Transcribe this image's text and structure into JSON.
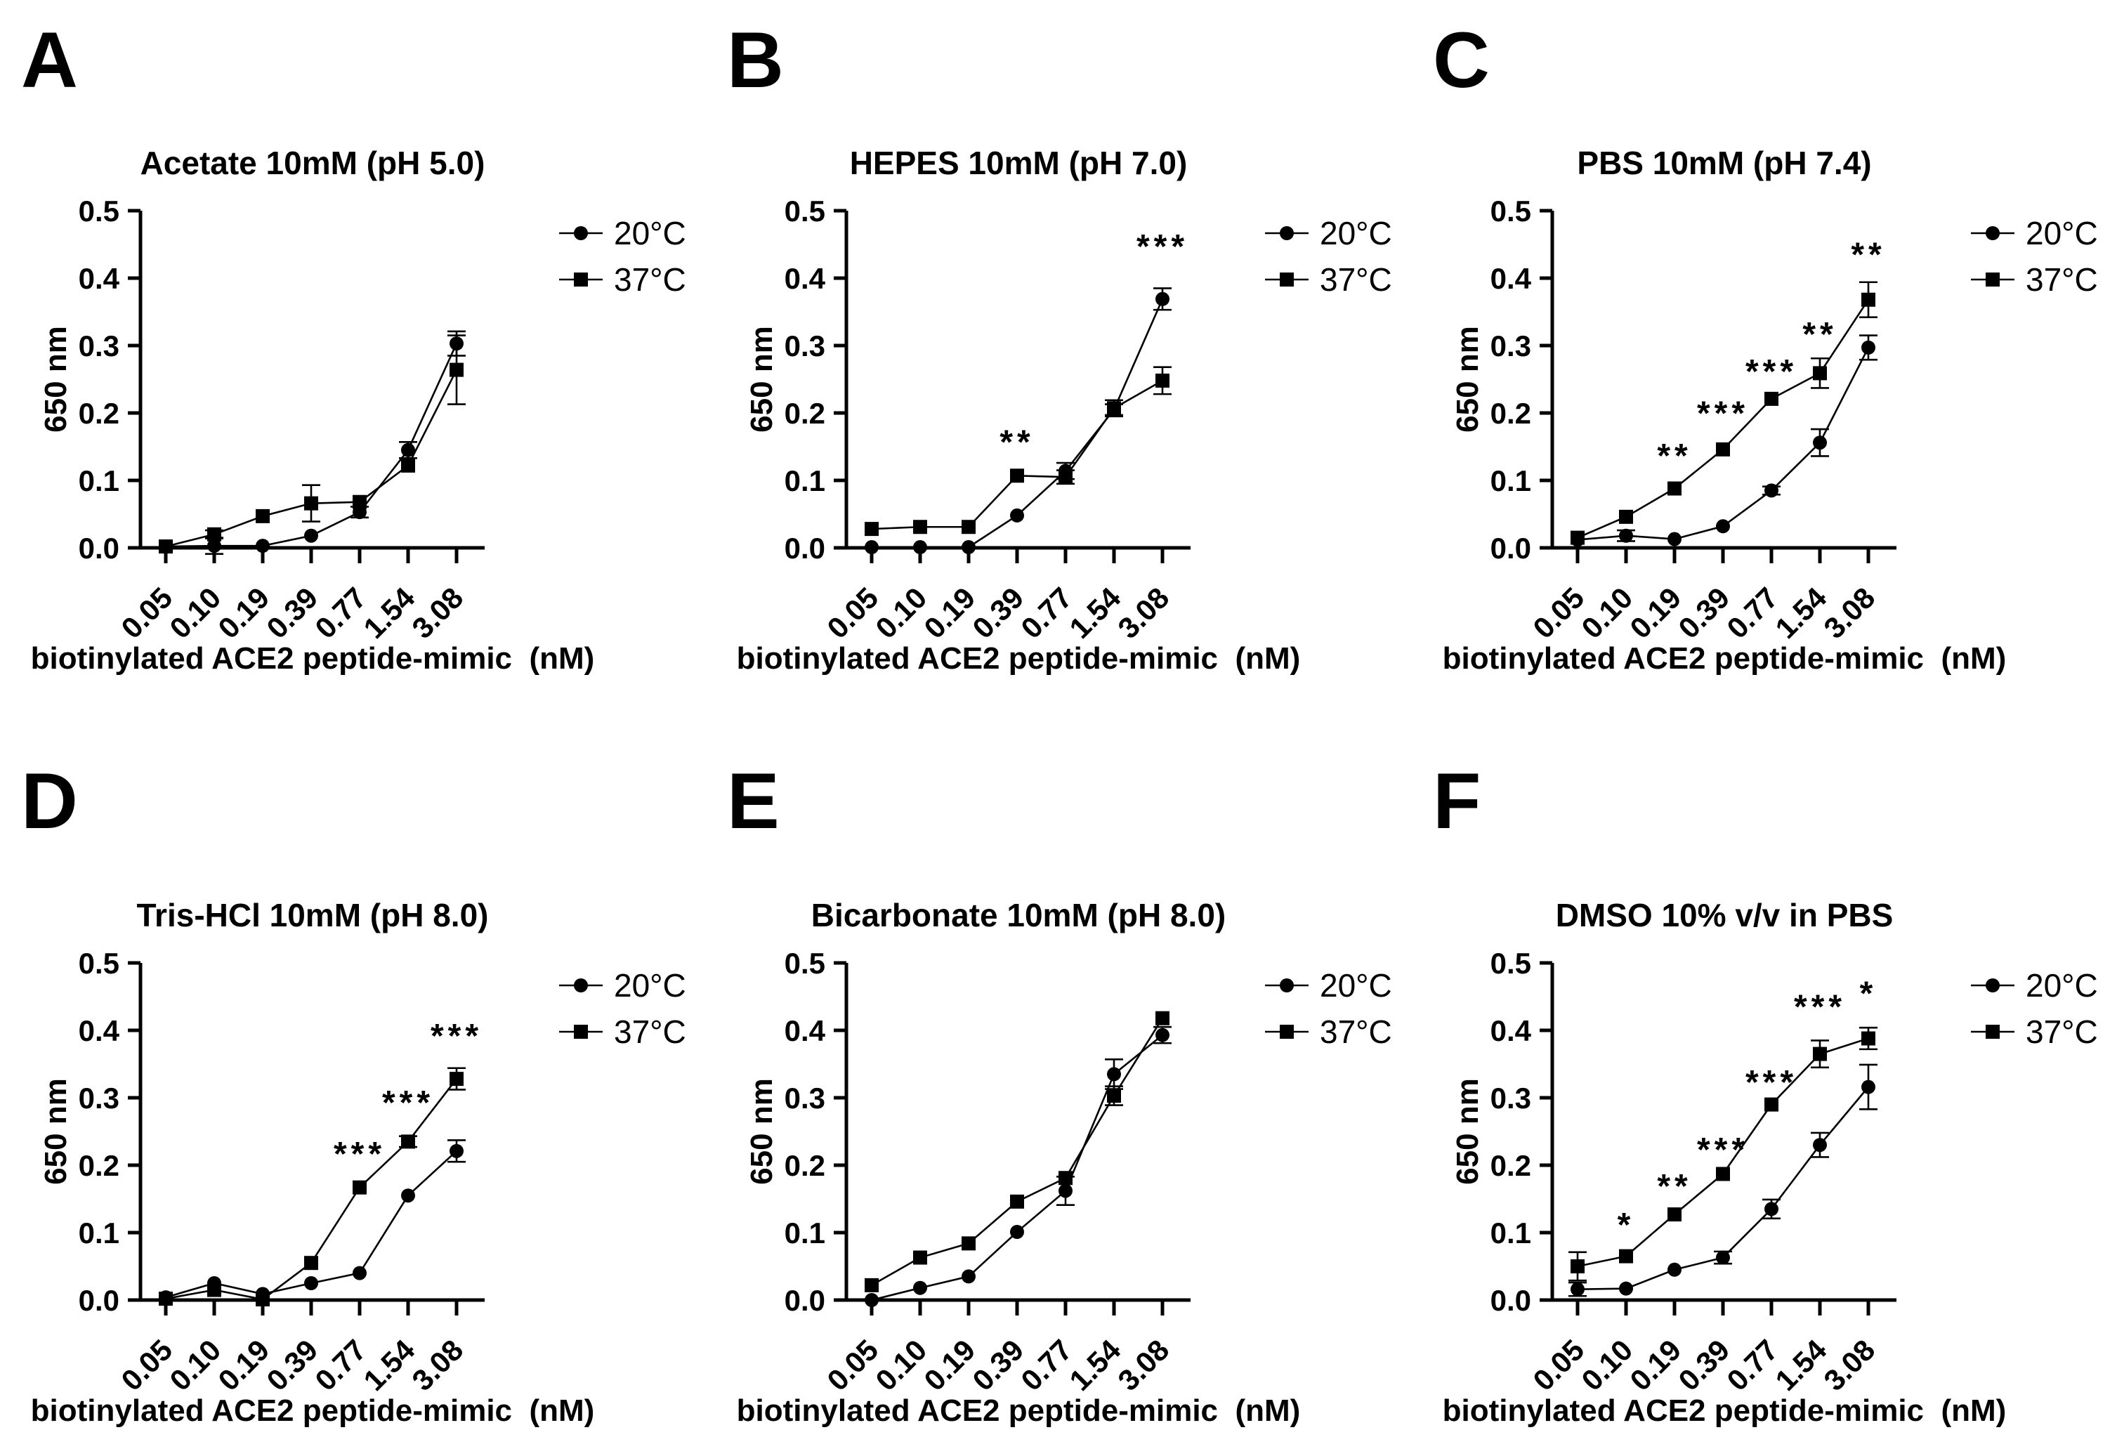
{
  "figure": {
    "background": "#ffffff",
    "ink_color": "#000000",
    "x_categories": [
      "0.05",
      "0.10",
      "0.19",
      "0.39",
      "0.77",
      "1.54",
      "3.08"
    ],
    "xlabel": "biotinylated ACE2 peptide-mimic  (nM)",
    "ylabel": "650 nm",
    "ylim": [
      0,
      0.5
    ],
    "yticks": [
      "0.0",
      "0.1",
      "0.2",
      "0.3",
      "0.4",
      "0.5"
    ],
    "legend": [
      {
        "label": "20°C",
        "marker": "circle"
      },
      {
        "label": "37°C",
        "marker": "square"
      }
    ],
    "legend_position": "top-right",
    "grid": false
  },
  "chart_data": [
    {
      "panel": "A",
      "title": "Acetate 10mM (pH 5.0)",
      "type": "line",
      "categories": [
        "0.05",
        "0.10",
        "0.19",
        "0.39",
        "0.77",
        "1.54",
        "3.08"
      ],
      "series": [
        {
          "name": "20°C",
          "marker": "circle",
          "values": [
            0.002,
            0.003,
            0.003,
            0.018,
            0.053,
            0.145,
            0.303
          ],
          "errors": [
            0,
            0.012,
            0,
            0,
            0.008,
            0.012,
            0.018
          ]
        },
        {
          "name": "37°C",
          "marker": "square",
          "values": [
            0.002,
            0.02,
            0.047,
            0.066,
            0.068,
            0.122,
            0.264
          ],
          "errors": [
            0,
            0.006,
            0,
            0.027,
            0,
            0,
            0.051
          ]
        }
      ],
      "annotations": []
    },
    {
      "panel": "B",
      "title": "HEPES 10mM (pH 7.0)",
      "type": "line",
      "categories": [
        "0.05",
        "0.10",
        "0.19",
        "0.39",
        "0.77",
        "1.54",
        "3.08"
      ],
      "series": [
        {
          "name": "20°C",
          "marker": "circle",
          "values": [
            0.001,
            0.001,
            0.001,
            0.048,
            0.114,
            0.205,
            0.369
          ],
          "errors": [
            0,
            0,
            0,
            0,
            0.012,
            0.008,
            0.016
          ]
        },
        {
          "name": "37°C",
          "marker": "square",
          "values": [
            0.028,
            0.031,
            0.031,
            0.107,
            0.105,
            0.207,
            0.248
          ],
          "errors": [
            0,
            0,
            0,
            0,
            0.01,
            0.012,
            0.02
          ]
        }
      ],
      "annotations": [
        {
          "x": "0.39",
          "text": "**",
          "y": 0.14
        },
        {
          "x": "3.08",
          "text": "***",
          "y": 0.43
        }
      ]
    },
    {
      "panel": "C",
      "title": "PBS 10mM (pH 7.4)",
      "type": "line",
      "categories": [
        "0.05",
        "0.10",
        "0.19",
        "0.39",
        "0.77",
        "1.54",
        "3.08"
      ],
      "series": [
        {
          "name": "20°C",
          "marker": "circle",
          "values": [
            0.012,
            0.018,
            0.013,
            0.032,
            0.085,
            0.156,
            0.297
          ],
          "errors": [
            0,
            0.008,
            0,
            0,
            0.006,
            0.02,
            0.018
          ]
        },
        {
          "name": "37°C",
          "marker": "square",
          "values": [
            0.015,
            0.046,
            0.088,
            0.146,
            0.221,
            0.259,
            0.368
          ],
          "errors": [
            0,
            0,
            0,
            0,
            0,
            0.022,
            0.026
          ]
        }
      ],
      "annotations": [
        {
          "x": "0.19",
          "text": "**",
          "y": 0.12
        },
        {
          "x": "0.39",
          "text": "***",
          "y": 0.183
        },
        {
          "x": "0.77",
          "text": "***",
          "y": 0.245
        },
        {
          "x": "1.54",
          "text": "**",
          "y": 0.3
        },
        {
          "x": "3.08",
          "text": "**",
          "y": 0.418
        }
      ]
    },
    {
      "panel": "D",
      "title": "Tris-HCl 10mM (pH 8.0)",
      "type": "line",
      "categories": [
        "0.05",
        "0.10",
        "0.19",
        "0.39",
        "0.77",
        "1.54",
        "3.08"
      ],
      "series": [
        {
          "name": "20°C",
          "marker": "circle",
          "values": [
            0.004,
            0.025,
            0.009,
            0.025,
            0.04,
            0.155,
            0.221
          ],
          "errors": [
            0,
            0,
            0,
            0,
            0,
            0,
            0.016
          ]
        },
        {
          "name": "37°C",
          "marker": "square",
          "values": [
            0.002,
            0.015,
            0.001,
            0.055,
            0.167,
            0.235,
            0.328
          ],
          "errors": [
            0,
            0,
            0,
            0,
            0,
            0.008,
            0.016
          ]
        }
      ],
      "annotations": [
        {
          "x": "0.77",
          "text": "***",
          "y": 0.2
        },
        {
          "x": "1.54",
          "text": "***",
          "y": 0.276
        },
        {
          "x": "3.08",
          "text": "***",
          "y": 0.375
        }
      ]
    },
    {
      "panel": "E",
      "title": "Bicarbonate 10mM (pH 8.0)",
      "type": "line",
      "categories": [
        "0.05",
        "0.10",
        "0.19",
        "0.39",
        "0.77",
        "1.54",
        "3.08"
      ],
      "series": [
        {
          "name": "20°C",
          "marker": "circle",
          "values": [
            0.0,
            0.018,
            0.035,
            0.101,
            0.162,
            0.335,
            0.393
          ],
          "errors": [
            0,
            0,
            0,
            0,
            0.021,
            0.022,
            0.012
          ]
        },
        {
          "name": "37°C",
          "marker": "square",
          "values": [
            0.022,
            0.063,
            0.084,
            0.146,
            0.181,
            0.303,
            0.418
          ],
          "errors": [
            0,
            0,
            0,
            0,
            0,
            0.014,
            0
          ]
        }
      ],
      "annotations": []
    },
    {
      "panel": "F",
      "title": "DMSO 10% v/v in PBS",
      "type": "line",
      "categories": [
        "0.05",
        "0.10",
        "0.19",
        "0.39",
        "0.77",
        "1.54",
        "3.08"
      ],
      "series": [
        {
          "name": "20°C",
          "marker": "circle",
          "values": [
            0.016,
            0.017,
            0.045,
            0.063,
            0.135,
            0.23,
            0.316
          ],
          "errors": [
            0.01,
            0,
            0,
            0.009,
            0.014,
            0.018,
            0.033
          ]
        },
        {
          "name": "37°C",
          "marker": "square",
          "values": [
            0.05,
            0.065,
            0.127,
            0.187,
            0.29,
            0.365,
            0.388
          ],
          "errors": [
            0.021,
            0,
            0,
            0,
            0,
            0.02,
            0.016
          ]
        }
      ],
      "annotations": [
        {
          "x": "0.10",
          "text": "*",
          "y": 0.095
        },
        {
          "x": "0.19",
          "text": "**",
          "y": 0.152
        },
        {
          "x": "0.39",
          "text": "***",
          "y": 0.206
        },
        {
          "x": "0.77",
          "text": "***",
          "y": 0.306
        },
        {
          "x": "1.54",
          "text": "***",
          "y": 0.418
        },
        {
          "x": "3.08",
          "text": "*",
          "y": 0.438
        }
      ]
    }
  ]
}
